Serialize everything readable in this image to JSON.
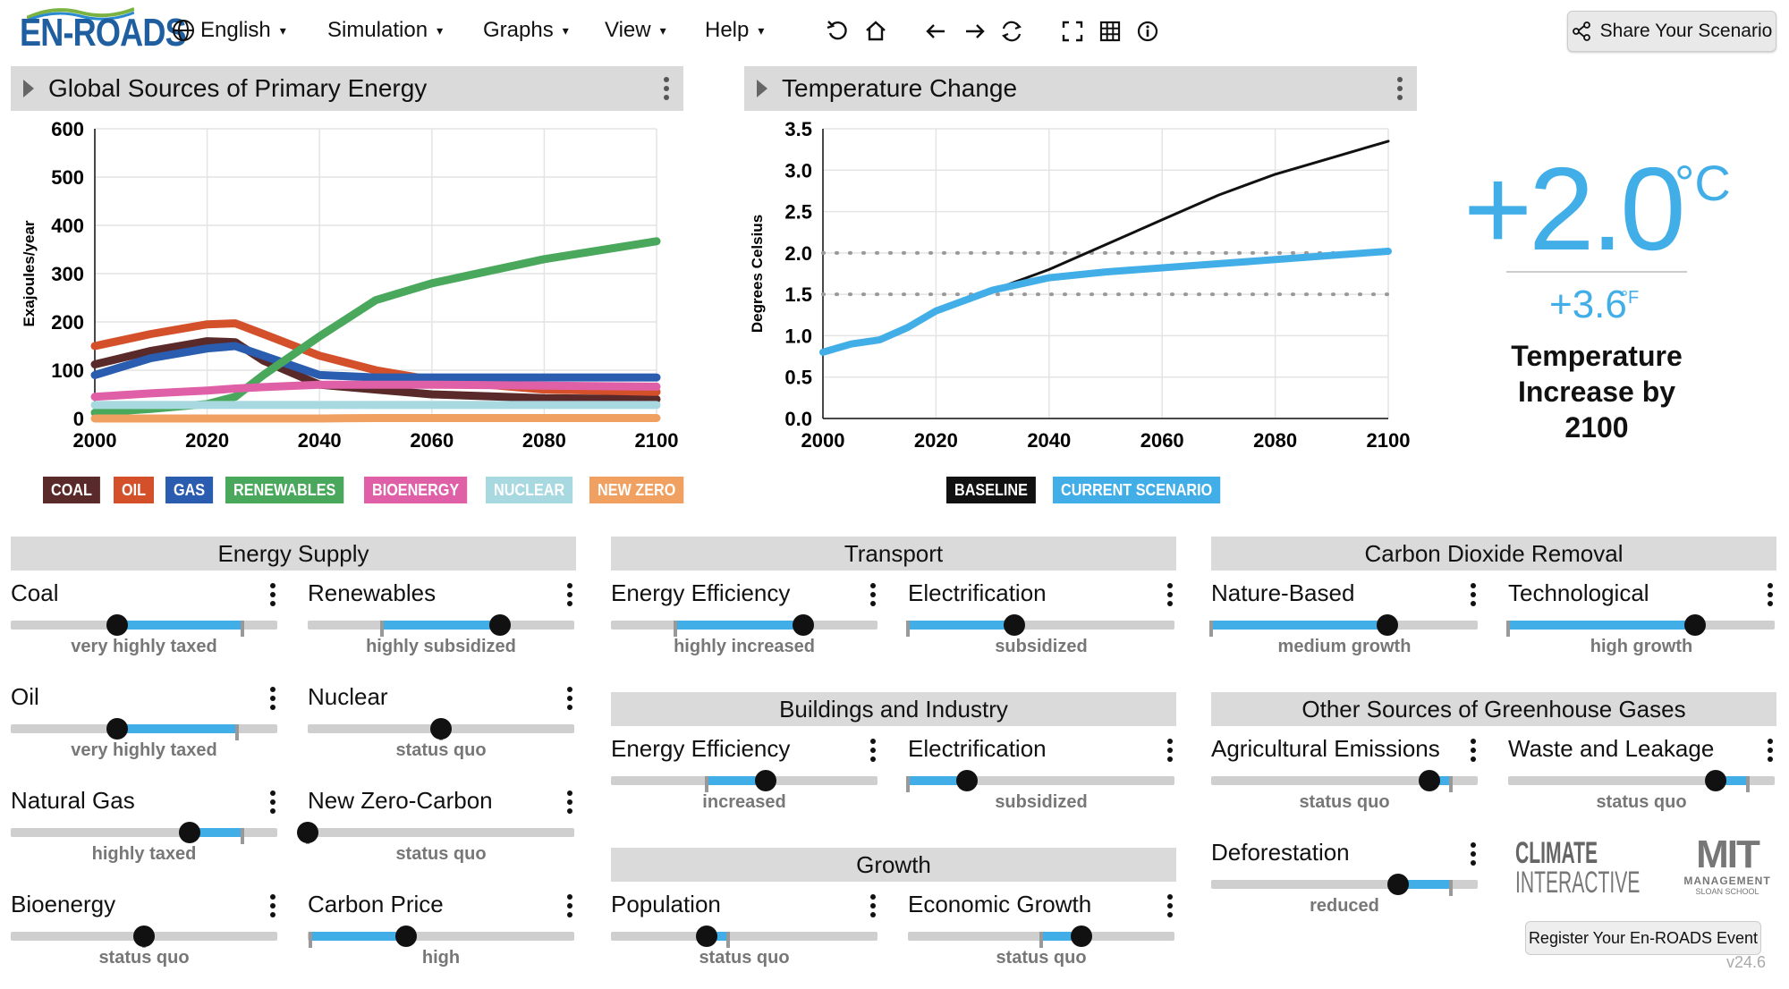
{
  "app": {
    "logo": "EN-ROADS",
    "version": "v24.6"
  },
  "menu": {
    "language": "English",
    "simulation": "Simulation",
    "graphs": "Graphs",
    "view": "View",
    "help": "Help"
  },
  "toolbar_icons": [
    "undo-icon",
    "home-icon",
    "back-arrow-icon",
    "forward-arrow-icon",
    "swap-icon",
    "fullscreen-icon",
    "table-icon",
    "info-icon"
  ],
  "share_label": "Share Your Scenario",
  "energy_chart": {
    "title": "Global Sources of Primary Energy",
    "ylabel": "Exajoules/year",
    "x_ticks": [
      "2000",
      "2020",
      "2040",
      "2060",
      "2080",
      "2100"
    ],
    "y_ticks": [
      "600",
      "500",
      "400",
      "300",
      "200",
      "100",
      "0"
    ],
    "legend": [
      {
        "label": "COAL",
        "color": "#5a2a2a"
      },
      {
        "label": "OIL",
        "color": "#d4502a"
      },
      {
        "label": "GAS",
        "color": "#2a5db0"
      },
      {
        "label": "RENEWABLES",
        "color": "#4aa85c"
      },
      {
        "label": "BIOENERGY",
        "color": "#e060a8"
      },
      {
        "label": "NUCLEAR",
        "color": "#a8d8e0"
      },
      {
        "label": "NEW ZERO",
        "color": "#f0a060"
      }
    ]
  },
  "chart_data": [
    {
      "type": "line",
      "title": "Global Sources of Primary Energy",
      "xlabel": "",
      "ylabel": "Exajoules/year",
      "xlim": [
        2000,
        2100
      ],
      "ylim": [
        0,
        600
      ],
      "x": [
        2000,
        2010,
        2020,
        2025,
        2030,
        2040,
        2050,
        2060,
        2080,
        2100
      ],
      "series": [
        {
          "name": "COAL",
          "color": "#5a2a2a",
          "values": [
            112,
            140,
            160,
            158,
            120,
            70,
            60,
            50,
            42,
            40
          ]
        },
        {
          "name": "OIL",
          "color": "#d4502a",
          "values": [
            150,
            175,
            195,
            197,
            175,
            130,
            100,
            80,
            60,
            55
          ]
        },
        {
          "name": "GAS",
          "color": "#2a5db0",
          "values": [
            90,
            125,
            145,
            150,
            130,
            90,
            85,
            85,
            85,
            85
          ]
        },
        {
          "name": "RENEWABLES",
          "color": "#4aa85c",
          "values": [
            12,
            20,
            30,
            45,
            90,
            170,
            245,
            280,
            330,
            367
          ]
        },
        {
          "name": "BIOENERGY",
          "color": "#e060a8",
          "values": [
            45,
            52,
            58,
            62,
            65,
            70,
            70,
            70,
            68,
            66
          ]
        },
        {
          "name": "NUCLEAR",
          "color": "#a8d8e0",
          "values": [
            28,
            28,
            28,
            28,
            28,
            28,
            28,
            28,
            28,
            28
          ]
        },
        {
          "name": "NEW ZERO",
          "color": "#f0a060",
          "values": [
            0,
            0,
            0,
            0,
            0,
            0,
            1,
            1,
            1,
            1
          ]
        }
      ],
      "grid": true
    },
    {
      "type": "line",
      "title": "Temperature Change",
      "xlabel": "",
      "ylabel": "Degrees Celsius",
      "xlim": [
        2000,
        2100
      ],
      "ylim": [
        0,
        3.5
      ],
      "x": [
        2000,
        2005,
        2010,
        2015,
        2020,
        2030,
        2040,
        2050,
        2060,
        2070,
        2080,
        2090,
        2100
      ],
      "series": [
        {
          "name": "BASELINE",
          "color": "#111111",
          "values": [
            0.8,
            0.9,
            0.95,
            1.1,
            1.3,
            1.55,
            1.8,
            2.1,
            2.4,
            2.7,
            2.95,
            3.15,
            3.35
          ]
        },
        {
          "name": "CURRENT SCENARIO",
          "color": "#42aee8",
          "values": [
            0.8,
            0.9,
            0.95,
            1.1,
            1.3,
            1.55,
            1.7,
            1.77,
            1.82,
            1.87,
            1.92,
            1.97,
            2.02
          ]
        }
      ],
      "reference_lines": [
        1.5,
        2.0
      ],
      "grid": true
    }
  ],
  "temp_chart": {
    "title": "Temperature Change",
    "ylabel": "Degrees Celsius",
    "x_ticks": [
      "2000",
      "2020",
      "2040",
      "2060",
      "2080",
      "2100"
    ],
    "y_ticks": [
      "3.5",
      "3.0",
      "2.5",
      "2.0",
      "1.5",
      "1.0",
      "0.5",
      "0.0"
    ],
    "legend": [
      {
        "label": "BASELINE",
        "color": "#111111"
      },
      {
        "label": "CURRENT SCENARIO",
        "color": "#42aee8"
      }
    ]
  },
  "temperature": {
    "celsius": "+2.0",
    "c_unit": "°C",
    "fahrenheit": "+3.6",
    "f_unit": "°F",
    "caption_1": "Temperature",
    "caption_2": "Increase by",
    "caption_3": "2100"
  },
  "sections": {
    "energy_supply": "Energy Supply",
    "transport": "Transport",
    "cdr": "Carbon Dioxide Removal",
    "buildings": "Buildings and Industry",
    "other_ghg": "Other Sources of Greenhouse Gases",
    "growth": "Growth"
  },
  "sliders": [
    {
      "id": "coal",
      "title": "Coal",
      "state": "very highly taxed",
      "value": 0.4,
      "fill_from": 0.4,
      "fill_to": 0.87,
      "tick": 0.87
    },
    {
      "id": "renewables",
      "title": "Renewables",
      "state": "highly subsidized",
      "value": 0.72,
      "fill_from": 0.28,
      "fill_to": 0.72,
      "tick": 0.28
    },
    {
      "id": "oil",
      "title": "Oil",
      "state": "very highly taxed",
      "value": 0.4,
      "fill_from": 0.4,
      "fill_to": 0.85,
      "tick": 0.85
    },
    {
      "id": "nuclear",
      "title": "Nuclear",
      "state": "status quo",
      "value": 0.5,
      "fill_from": 0.5,
      "fill_to": 0.5,
      "tick": 0.5
    },
    {
      "id": "gas",
      "title": "Natural Gas",
      "state": "highly taxed",
      "value": 0.67,
      "fill_from": 0.67,
      "fill_to": 0.87,
      "tick": 0.87
    },
    {
      "id": "newzero",
      "title": "New Zero-Carbon",
      "state": "status quo",
      "value": 0.0,
      "fill_from": 0.0,
      "fill_to": 0.0,
      "tick": 0.0
    },
    {
      "id": "bio",
      "title": "Bioenergy",
      "state": "status quo",
      "value": 0.5,
      "fill_from": 0.5,
      "fill_to": 0.5,
      "tick": 0.5
    },
    {
      "id": "carbonprice",
      "title": "Carbon Price",
      "state": "high",
      "value": 0.37,
      "fill_from": 0.01,
      "fill_to": 0.37,
      "tick": 0.01
    },
    {
      "id": "t_eff",
      "title": "Energy Efficiency",
      "state": "highly increased",
      "value": 0.72,
      "fill_from": 0.24,
      "fill_to": 0.72,
      "tick": 0.24
    },
    {
      "id": "t_elec",
      "title": "Electrification",
      "state": "subsidized",
      "value": 0.4,
      "fill_from": 0.0,
      "fill_to": 0.4,
      "tick": 0.0
    },
    {
      "id": "b_eff",
      "title": "Energy Efficiency",
      "state": "increased",
      "value": 0.58,
      "fill_from": 0.36,
      "fill_to": 0.58,
      "tick": 0.36
    },
    {
      "id": "b_elec",
      "title": "Electrification",
      "state": "subsidized",
      "value": 0.22,
      "fill_from": 0.0,
      "fill_to": 0.22,
      "tick": 0.0
    },
    {
      "id": "pop",
      "title": "Population",
      "state": "status quo",
      "value": 0.36,
      "fill_from": 0.36,
      "fill_to": 0.44,
      "tick": 0.44
    },
    {
      "id": "econ",
      "title": "Economic Growth",
      "state": "status quo",
      "value": 0.65,
      "fill_from": 0.5,
      "fill_to": 0.65,
      "tick": 0.5
    },
    {
      "id": "nature",
      "title": "Nature-Based",
      "state": "medium growth",
      "value": 0.66,
      "fill_from": 0.0,
      "fill_to": 0.66,
      "tick": 0.0
    },
    {
      "id": "tech",
      "title": "Technological",
      "state": "high growth",
      "value": 0.7,
      "fill_from": 0.0,
      "fill_to": 0.7,
      "tick": 0.0
    },
    {
      "id": "agri",
      "title": "Agricultural Emissions",
      "state": "status quo",
      "value": 0.82,
      "fill_from": 0.82,
      "fill_to": 0.9,
      "tick": 0.9
    },
    {
      "id": "waste",
      "title": "Waste and Leakage",
      "state": "status quo",
      "value": 0.78,
      "fill_from": 0.78,
      "fill_to": 0.9,
      "tick": 0.9
    },
    {
      "id": "defor",
      "title": "Deforestation",
      "state": "reduced",
      "value": 0.7,
      "fill_from": 0.7,
      "fill_to": 0.9,
      "tick": 0.9
    }
  ],
  "brands": {
    "ci_1": "CLIMATE",
    "ci_2": "INTERACTIVE",
    "mit": "MIT",
    "mit_sub": "MANAGEMENT",
    "mit_sub2": "SLOAN SCHOOL"
  },
  "register_label": "Register Your En-ROADS Event"
}
